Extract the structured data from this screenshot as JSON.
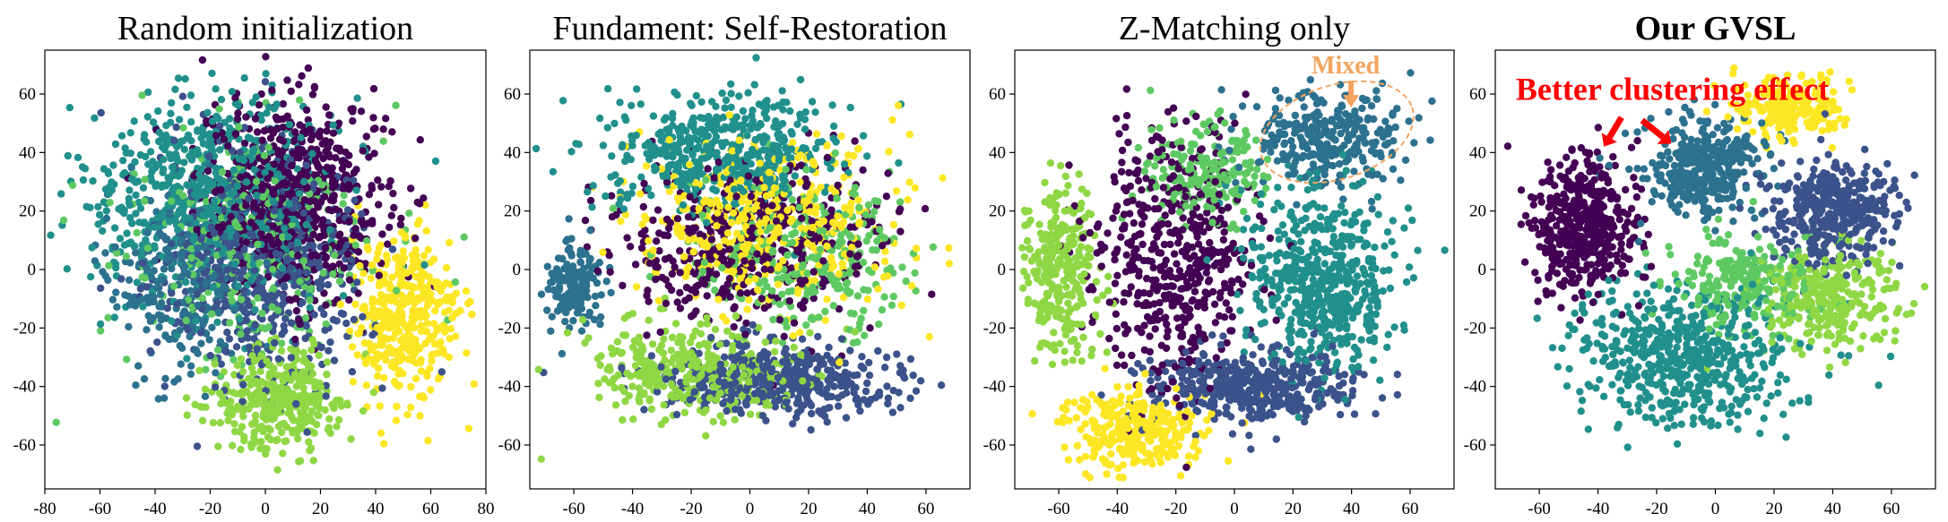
{
  "chart_data": [
    {
      "type": "scatter",
      "title": "Random initialization",
      "title_bold": false,
      "xlim": [
        -80,
        80
      ],
      "ylim": [
        -75,
        75
      ],
      "xticks": [
        -80,
        -60,
        -40,
        -20,
        0,
        20,
        40,
        60,
        80
      ],
      "yticks": [
        -60,
        -40,
        -20,
        0,
        20,
        40,
        60
      ],
      "clusters": [
        {
          "color": "#440154",
          "cx": 10,
          "cy": 25,
          "rx": 38,
          "ry": 38,
          "n": 700
        },
        {
          "color": "#3b528b",
          "cx": 0,
          "cy": 0,
          "rx": 42,
          "ry": 45,
          "n": 550
        },
        {
          "color": "#21908c",
          "cx": -20,
          "cy": 25,
          "rx": 48,
          "ry": 38,
          "n": 700
        },
        {
          "color": "#5ec962",
          "cx": -5,
          "cy": 10,
          "rx": 50,
          "ry": 45,
          "n": 300
        },
        {
          "color": "#8fd744",
          "cx": 5,
          "cy": -45,
          "rx": 28,
          "ry": 20,
          "n": 350
        },
        {
          "color": "#fde725",
          "cx": 50,
          "cy": -15,
          "rx": 22,
          "ry": 28,
          "n": 400
        },
        {
          "color": "#2c718e",
          "cx": -30,
          "cy": -5,
          "rx": 30,
          "ry": 35,
          "n": 250
        }
      ],
      "annotations": []
    },
    {
      "type": "scatter",
      "title": "Fundament: Self-Restoration",
      "title_bold": false,
      "xlim": [
        -75,
        75
      ],
      "ylim": [
        -75,
        75
      ],
      "xticks": [
        -60,
        -40,
        -20,
        0,
        20,
        40,
        60
      ],
      "yticks": [
        -60,
        -40,
        -20,
        0,
        20,
        40,
        60
      ],
      "clusters": [
        {
          "color": "#21908c",
          "cx": -10,
          "cy": 40,
          "rx": 45,
          "ry": 22,
          "n": 500
        },
        {
          "color": "#440154",
          "cx": 0,
          "cy": 10,
          "rx": 50,
          "ry": 30,
          "n": 450
        },
        {
          "color": "#fde725",
          "cx": 5,
          "cy": 15,
          "rx": 50,
          "ry": 35,
          "n": 450
        },
        {
          "color": "#5ec962",
          "cx": 20,
          "cy": 5,
          "rx": 45,
          "ry": 30,
          "n": 300
        },
        {
          "color": "#2c718e",
          "cx": -60,
          "cy": -5,
          "rx": 10,
          "ry": 18,
          "n": 150
        },
        {
          "color": "#3b528b",
          "cx": 10,
          "cy": -38,
          "rx": 45,
          "ry": 14,
          "n": 450
        },
        {
          "color": "#8fd744",
          "cx": -20,
          "cy": -35,
          "rx": 40,
          "ry": 18,
          "n": 350
        }
      ],
      "annotations": []
    },
    {
      "type": "scatter",
      "title": "Z-Matching only",
      "title_bold": false,
      "xlim": [
        -75,
        75
      ],
      "ylim": [
        -75,
        75
      ],
      "xticks": [
        -60,
        -40,
        -20,
        0,
        20,
        40,
        60
      ],
      "yticks": [
        -60,
        -40,
        -20,
        0,
        20,
        40,
        60
      ],
      "clusters": [
        {
          "color": "#440154",
          "cx": -20,
          "cy": 5,
          "rx": 30,
          "ry": 50,
          "n": 500
        },
        {
          "color": "#2c718e",
          "cx": 30,
          "cy": 45,
          "rx": 30,
          "ry": 18,
          "n": 300
        },
        {
          "color": "#21908c",
          "cx": 30,
          "cy": -5,
          "rx": 28,
          "ry": 35,
          "n": 550
        },
        {
          "color": "#3b528b",
          "cx": 5,
          "cy": -40,
          "rx": 40,
          "ry": 14,
          "n": 450
        },
        {
          "color": "#8fd744",
          "cx": -60,
          "cy": 0,
          "rx": 14,
          "ry": 35,
          "n": 300
        },
        {
          "color": "#fde725",
          "cx": -35,
          "cy": -55,
          "rx": 28,
          "ry": 14,
          "n": 300
        },
        {
          "color": "#5ec962",
          "cx": -10,
          "cy": 35,
          "rx": 25,
          "ry": 20,
          "n": 200
        }
      ],
      "annotations": [
        {
          "text": "Mixed",
          "color": "#f4a460",
          "x": 38,
          "y": 67,
          "ellipse": {
            "cx": 35,
            "cy": 47,
            "rx": 27,
            "ry": 16
          }
        }
      ]
    },
    {
      "type": "scatter",
      "title": "Our GVSL",
      "title_bold": true,
      "xlim": [
        -75,
        75
      ],
      "ylim": [
        -75,
        75
      ],
      "xticks": [
        -60,
        -40,
        -20,
        0,
        20,
        40,
        60
      ],
      "yticks": [
        -60,
        -40,
        -20,
        0,
        20,
        40,
        60
      ],
      "clusters": [
        {
          "color": "#440154",
          "cx": -45,
          "cy": 15,
          "rx": 20,
          "ry": 28,
          "n": 450
        },
        {
          "color": "#2c718e",
          "cx": -5,
          "cy": 35,
          "rx": 24,
          "ry": 18,
          "n": 350
        },
        {
          "color": "#3b528b",
          "cx": 40,
          "cy": 20,
          "rx": 25,
          "ry": 20,
          "n": 400
        },
        {
          "color": "#fde725",
          "cx": 25,
          "cy": 55,
          "rx": 20,
          "ry": 12,
          "n": 250
        },
        {
          "color": "#21908c",
          "cx": -10,
          "cy": -30,
          "rx": 40,
          "ry": 28,
          "n": 550
        },
        {
          "color": "#8fd744",
          "cx": 40,
          "cy": -10,
          "rx": 25,
          "ry": 18,
          "n": 300
        },
        {
          "color": "#5ec962",
          "cx": 10,
          "cy": -5,
          "rx": 25,
          "ry": 20,
          "n": 250
        }
      ],
      "annotations": [
        {
          "text": "Better clustering effect",
          "color": "#ff0000",
          "x": -68,
          "y": 58
        }
      ]
    }
  ]
}
